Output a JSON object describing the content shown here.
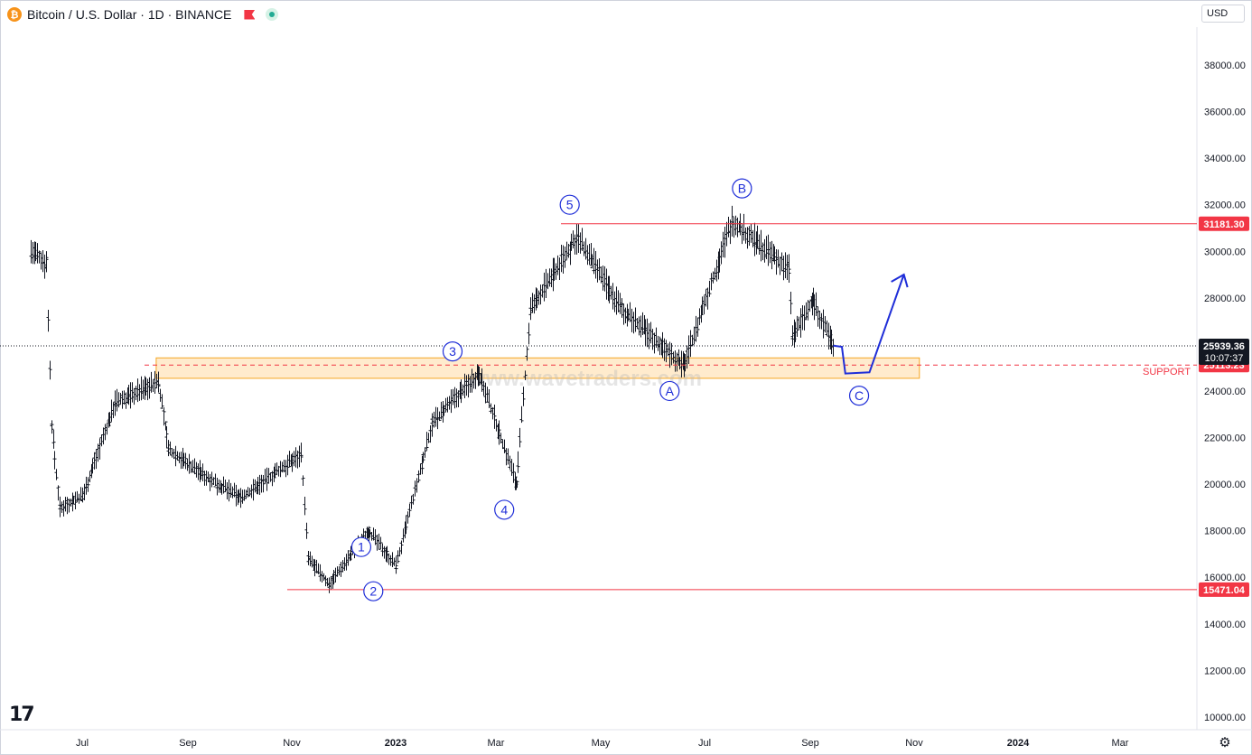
{
  "header": {
    "symbol_icon": "bitcoin-icon",
    "title": "Bitcoin / U.S. Dollar · 1D · BINANCE"
  },
  "currency_label": "USD",
  "watermark": "www.wavetraders.com",
  "chart_data": {
    "type": "candlestick",
    "title": "Bitcoin / U.S. Dollar · 1D · BINANCE",
    "ylim": [
      9000,
      39500
    ],
    "y_ticks": [
      10000,
      12000,
      14000,
      16000,
      18000,
      20000,
      22000,
      24000,
      26000,
      28000,
      30000,
      32000,
      34000,
      36000,
      38000
    ],
    "y_tick_labels": [
      "10000.00",
      "12000.00",
      "14000.00",
      "16000.00",
      "18000.00",
      "20000.00",
      "22000.00",
      "24000.00",
      "26000.00",
      "28000.00",
      "30000.00",
      "32000.00",
      "34000.00",
      "36000.00",
      "38000.00"
    ],
    "x_ticks": [
      "Jul",
      "Sep",
      "Nov",
      "2023",
      "Mar",
      "May",
      "Jul",
      "Sep",
      "Nov",
      "2024",
      "Mar"
    ],
    "price_path": [
      {
        "date": "2022-06-01",
        "price": 30000
      },
      {
        "date": "2022-06-10",
        "price": 29500
      },
      {
        "date": "2022-06-13",
        "price": 22500
      },
      {
        "date": "2022-06-18",
        "price": 19000
      },
      {
        "date": "2022-07-01",
        "price": 19500
      },
      {
        "date": "2022-07-20",
        "price": 23500
      },
      {
        "date": "2022-08-14",
        "price": 24400
      },
      {
        "date": "2022-08-20",
        "price": 21500
      },
      {
        "date": "2022-09-13",
        "price": 20200
      },
      {
        "date": "2022-10-01",
        "price": 19400
      },
      {
        "date": "2022-11-05",
        "price": 21300
      },
      {
        "date": "2022-11-09",
        "price": 16800
      },
      {
        "date": "2022-11-21",
        "price": 15700
      },
      {
        "date": "2022-12-14",
        "price": 18000
      },
      {
        "date": "2022-12-30",
        "price": 16500
      },
      {
        "date": "2023-01-20",
        "price": 22600
      },
      {
        "date": "2023-02-16",
        "price": 24800
      },
      {
        "date": "2023-03-10",
        "price": 20000
      },
      {
        "date": "2023-03-18",
        "price": 27500
      },
      {
        "date": "2023-04-14",
        "price": 30600
      },
      {
        "date": "2023-05-10",
        "price": 27500
      },
      {
        "date": "2023-06-15",
        "price": 25100
      },
      {
        "date": "2023-07-13",
        "price": 31300
      },
      {
        "date": "2023-08-15",
        "price": 29200
      },
      {
        "date": "2023-08-17",
        "price": 26300
      },
      {
        "date": "2023-08-29",
        "price": 27900
      },
      {
        "date": "2023-09-10",
        "price": 25939
      }
    ],
    "wave_labels": [
      {
        "label": "1",
        "date": "2022-12-10",
        "price": 17300
      },
      {
        "label": "2",
        "date": "2022-12-17",
        "price": 15400
      },
      {
        "label": "3",
        "date": "2023-02-01",
        "price": 25700
      },
      {
        "label": "4",
        "date": "2023-03-03",
        "price": 18900
      },
      {
        "label": "5",
        "date": "2023-04-10",
        "price": 32000
      },
      {
        "label": "A",
        "date": "2023-06-07",
        "price": 24000
      },
      {
        "label": "B",
        "date": "2023-07-19",
        "price": 32700
      },
      {
        "label": "C",
        "date": "2023-09-25",
        "price": 23800
      }
    ],
    "projection": [
      {
        "date": "2023-09-10",
        "price": 25950
      },
      {
        "date": "2023-09-15",
        "price": 25900
      },
      {
        "date": "2023-09-17",
        "price": 24750
      },
      {
        "date": "2023-10-01",
        "price": 24800
      },
      {
        "date": "2023-10-21",
        "price": 29000
      }
    ],
    "levels": [
      {
        "value": 31181.3,
        "label": "31181.30",
        "color": "#f23645"
      },
      {
        "value": 15471.04,
        "label": "15471.04",
        "color": "#f23645"
      },
      {
        "value": 25113.23,
        "label": "25113.23",
        "name": "SUPPORT",
        "color": "#f23645",
        "style": "dashed"
      }
    ],
    "support_zone": {
      "from": 24700,
      "to": 25500,
      "start": "2022-08-14",
      "end": "2023-10-30"
    },
    "last_price": {
      "value": "25939.36",
      "countdown": "10:07:37"
    }
  }
}
